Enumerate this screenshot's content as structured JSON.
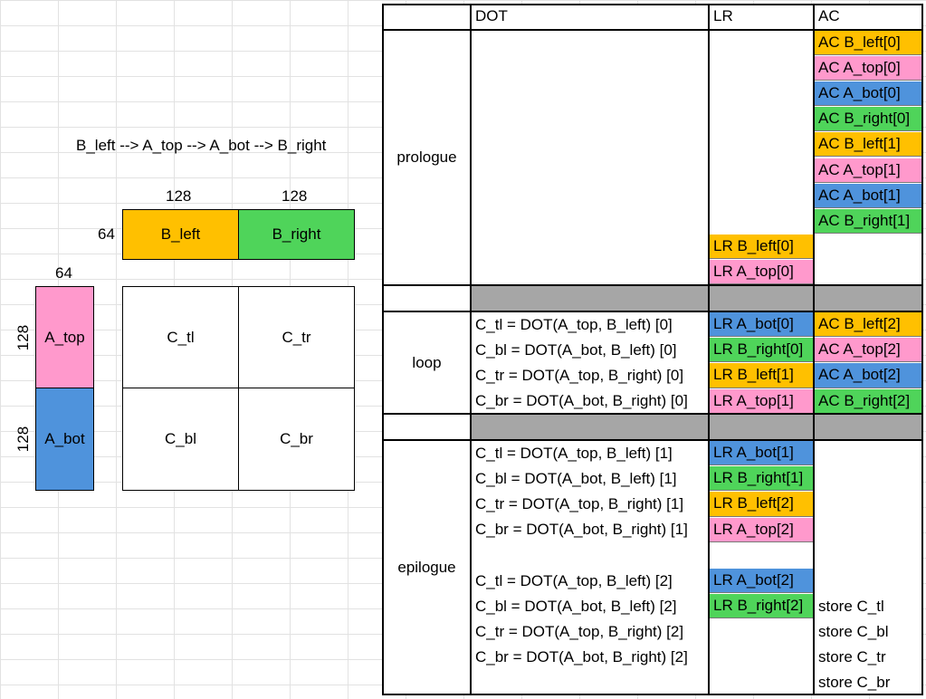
{
  "colors": {
    "orange": "#ffc000",
    "pink": "#ff99cc",
    "blue": "#4f93dc",
    "green": "#4fd45a",
    "gray": "#a6a6a6"
  },
  "order_text": "B_left --> A_top --> A_bot --> B_right",
  "tiles": {
    "b_width_1": "128",
    "b_width_2": "128",
    "b_height": "64",
    "a_width": "64",
    "a_height_1": "128",
    "a_height_2": "128",
    "b_left": "B_left",
    "b_right": "B_right",
    "a_top": "A_top",
    "a_bot": "A_bot",
    "c_tl": "C_tl",
    "c_tr": "C_tr",
    "c_bl": "C_bl",
    "c_br": "C_br"
  },
  "headers": {
    "dot": "DOT",
    "lr": "LR",
    "ac": "AC"
  },
  "sections": {
    "prologue": "prologue",
    "loop": "loop",
    "epilogue": "epilogue"
  },
  "prologue": {
    "ac": [
      {
        "text": "AC B_left[0]",
        "color": "orange"
      },
      {
        "text": "AC A_top[0]",
        "color": "pink"
      },
      {
        "text": "AC A_bot[0]",
        "color": "blue"
      },
      {
        "text": "AC B_right[0]",
        "color": "green"
      },
      {
        "text": "AC B_left[1]",
        "color": "orange"
      },
      {
        "text": "AC A_top[1]",
        "color": "pink"
      },
      {
        "text": "AC A_bot[1]",
        "color": "blue"
      },
      {
        "text": "AC B_right[1]",
        "color": "green"
      }
    ],
    "lr": [
      {
        "text": "LR B_left[0]",
        "color": "orange"
      },
      {
        "text": "LR A_top[0]",
        "color": "pink"
      }
    ]
  },
  "loop": {
    "dot": [
      "C_tl = DOT(A_top, B_left) [0]",
      "C_bl = DOT(A_bot, B_left) [0]",
      "C_tr = DOT(A_top, B_right) [0]",
      "C_br = DOT(A_bot, B_right) [0]"
    ],
    "lr": [
      {
        "text": "LR A_bot[0]",
        "color": "blue"
      },
      {
        "text": "LR B_right[0]",
        "color": "green"
      },
      {
        "text": "LR B_left[1]",
        "color": "orange"
      },
      {
        "text": "LR A_top[1]",
        "color": "pink"
      }
    ],
    "ac": [
      {
        "text": "AC B_left[2]",
        "color": "orange"
      },
      {
        "text": "AC A_top[2]",
        "color": "pink"
      },
      {
        "text": "AC A_bot[2]",
        "color": "blue"
      },
      {
        "text": "AC B_right[2]",
        "color": "green"
      }
    ]
  },
  "epilogue": {
    "dot": [
      "C_tl = DOT(A_top, B_left) [1]",
      "C_bl = DOT(A_bot, B_left) [1]",
      "C_tr = DOT(A_top, B_right) [1]",
      "C_br = DOT(A_bot, B_right) [1]",
      "",
      "C_tl = DOT(A_top, B_left) [2]",
      "C_bl = DOT(A_bot, B_left) [2]",
      "C_tr = DOT(A_top, B_right) [2]",
      "C_br = DOT(A_bot, B_right) [2]",
      ""
    ],
    "lr": [
      {
        "text": "LR A_bot[1]",
        "color": "blue"
      },
      {
        "text": "LR B_right[1]",
        "color": "green"
      },
      {
        "text": "LR B_left[2]",
        "color": "orange"
      },
      {
        "text": "LR A_top[2]",
        "color": "pink"
      },
      {
        "text": "",
        "color": ""
      },
      {
        "text": "LR A_bot[2]",
        "color": "blue"
      },
      {
        "text": "LR B_right[2]",
        "color": "green"
      },
      {
        "text": "",
        "color": ""
      },
      {
        "text": "",
        "color": ""
      },
      {
        "text": "",
        "color": ""
      }
    ],
    "ac": [
      "",
      "",
      "",
      "",
      "",
      "",
      "store C_tl",
      "store C_bl",
      "store C_tr",
      "store C_br"
    ]
  }
}
